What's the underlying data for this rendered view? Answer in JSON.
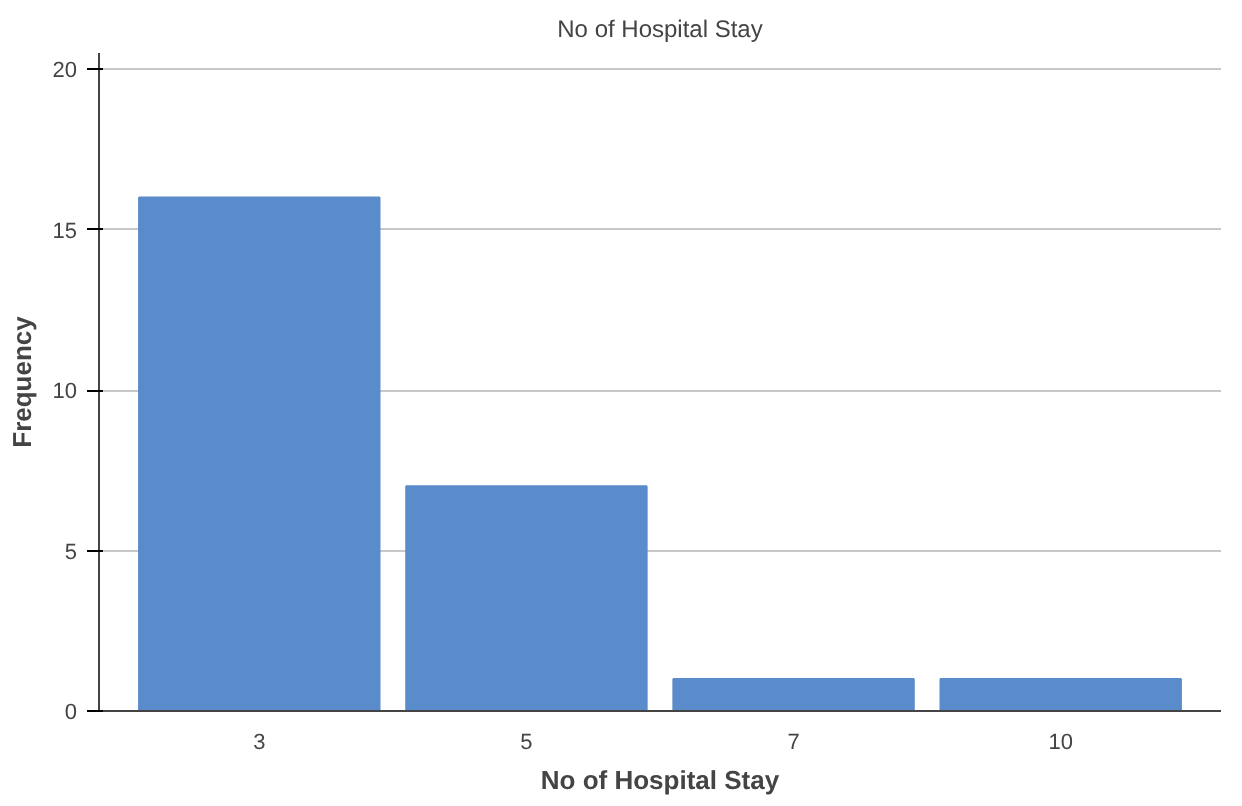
{
  "chart_data": {
    "type": "bar",
    "title": "No of Hospital Stay",
    "xlabel": "No of Hospital Stay",
    "ylabel": "Frequency",
    "categories": [
      "3",
      "5",
      "7",
      "10"
    ],
    "values": [
      16,
      7,
      1,
      1
    ],
    "color": "#5a8bca",
    "ylim": [
      0,
      20.5
    ],
    "yticks": [
      0,
      5,
      10,
      15,
      20
    ],
    "grid": "y"
  }
}
